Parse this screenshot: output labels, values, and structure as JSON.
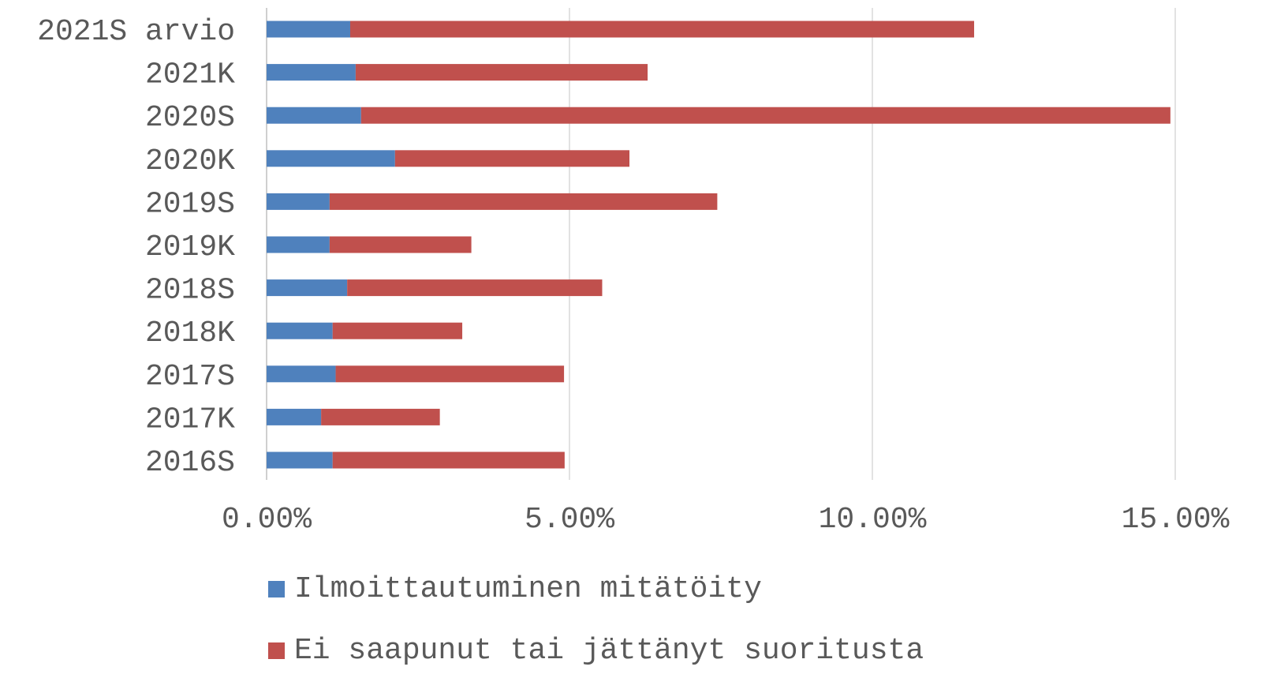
{
  "chart_data": {
    "type": "bar",
    "orientation": "horizontal",
    "stacked": true,
    "title": "",
    "xlabel": "",
    "ylabel": "",
    "categories": [
      "2021S arvio",
      "2021K",
      "2020S",
      "2020K",
      "2019S",
      "2019K",
      "2018S",
      "2018K",
      "2017S",
      "2017K",
      "2016S"
    ],
    "series": [
      {
        "name": "Ilmoittautuminen mitätöity",
        "color": "#4f81bd",
        "values": [
          1.38,
          1.47,
          1.56,
          2.12,
          1.04,
          1.04,
          1.33,
          1.09,
          1.14,
          0.9,
          1.09
        ]
      },
      {
        "name": "Ei saapunut tai jättänyt suoritusta",
        "color": "#c0504d",
        "values": [
          10.3,
          4.82,
          13.36,
          3.87,
          6.4,
          2.34,
          4.21,
          2.14,
          3.77,
          1.96,
          3.83
        ]
      }
    ],
    "xlim": [
      0,
      15
    ],
    "x_ticks": [
      0,
      5,
      10,
      15
    ],
    "x_tick_labels": [
      "0.00%",
      "5.00%",
      "10.00%",
      "15.00%"
    ],
    "grid": true,
    "grid_color": "#d9d9d9",
    "legend_position": "bottom",
    "text_color": "#595959"
  }
}
